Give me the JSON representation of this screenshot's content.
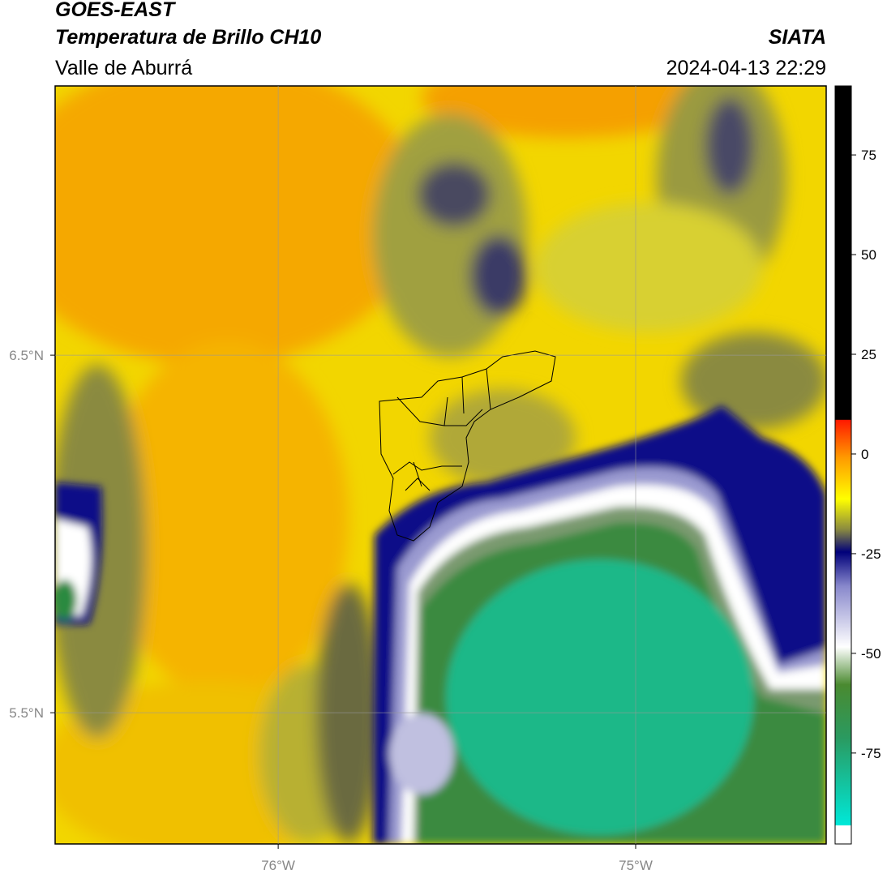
{
  "header": {
    "title": "GOES-EAST",
    "subtitle": "Temperatura de Brillo CH10",
    "region": "Valle de Aburrá",
    "source": "SIATA",
    "datetime": "2024-04-13 22:29"
  },
  "map": {
    "lonlim": [
      -76.624,
      -74.467
    ],
    "latlim": [
      5.133,
      7.253
    ],
    "lat_ticks": [
      {
        "value": 6.5,
        "label": "6.5°N"
      },
      {
        "value": 5.5,
        "label": "5.5°N"
      }
    ],
    "lon_ticks": [
      {
        "value": -76,
        "label": "76°W"
      },
      {
        "value": -75,
        "label": "75°W"
      }
    ]
  },
  "colorbar": {
    "lim": [
      -97.8,
      92.3
    ],
    "ticks": [
      75,
      50,
      25,
      0,
      -25,
      -50,
      -75
    ]
  }
}
